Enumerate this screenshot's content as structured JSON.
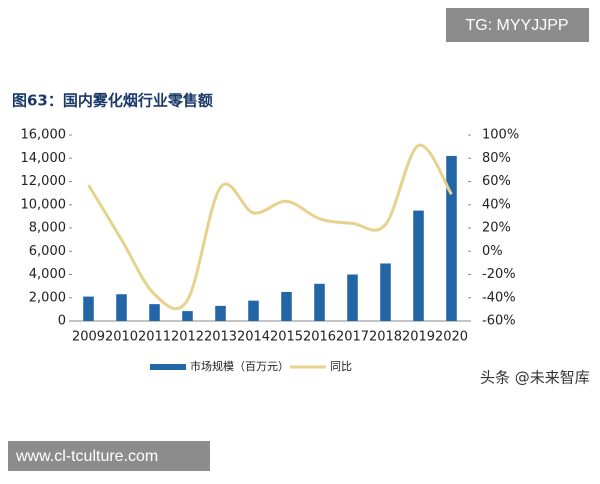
{
  "header": {
    "tag": "TG: MYYJJPP",
    "title": "图63：国内雾化烟行业零售额"
  },
  "chart_data": {
    "type": "bar",
    "categories": [
      "2009",
      "2010",
      "2011",
      "2012",
      "2013",
      "2014",
      "2015",
      "2016",
      "2017",
      "2018",
      "2019",
      "2020"
    ],
    "series": [
      {
        "name": "市场规模（百万元）",
        "type": "bar",
        "color": "#2266a6",
        "values": [
          2100,
          2300,
          1450,
          850,
          1300,
          1750,
          2500,
          3200,
          4000,
          4950,
          9500,
          14200
        ]
      },
      {
        "name": "同比",
        "type": "line",
        "axis": "y2",
        "color": "#e6d28c",
        "values": [
          57,
          10,
          -37,
          -42,
          55,
          33,
          43,
          28,
          24,
          23,
          91,
          49
        ]
      }
    ],
    "ylim": [
      0,
      16000
    ],
    "yticks": [
      0,
      {
        "value": 2000,
        "label": "2,000"
      },
      {
        "value": 4000,
        "label": "4,000"
      },
      {
        "value": 6000,
        "label": "6,000"
      },
      {
        "value": 8000,
        "label": "8,000"
      },
      {
        "value": 10000,
        "label": "10,000"
      },
      {
        "value": 12000,
        "label": "12,000"
      },
      {
        "value": 14000,
        "label": "14,000"
      },
      {
        "value": 16000,
        "label": "16,000"
      }
    ],
    "y2lim": [
      -60,
      100
    ],
    "y2ticks": [
      {
        "value": -60,
        "label": "-60%"
      },
      {
        "value": -40,
        "label": "-40%"
      },
      {
        "value": -20,
        "label": "-20%"
      },
      {
        "value": 0,
        "label": "0%"
      },
      {
        "value": 20,
        "label": "20%"
      },
      {
        "value": 40,
        "label": "40%"
      },
      {
        "value": 60,
        "label": "60%"
      },
      {
        "value": 80,
        "label": "80%"
      },
      {
        "value": 100,
        "label": "100%"
      }
    ],
    "grid": false,
    "legend": "bottom"
  },
  "watermark": "头条 @未来智库",
  "footer": "www.cl-tculture.com"
}
